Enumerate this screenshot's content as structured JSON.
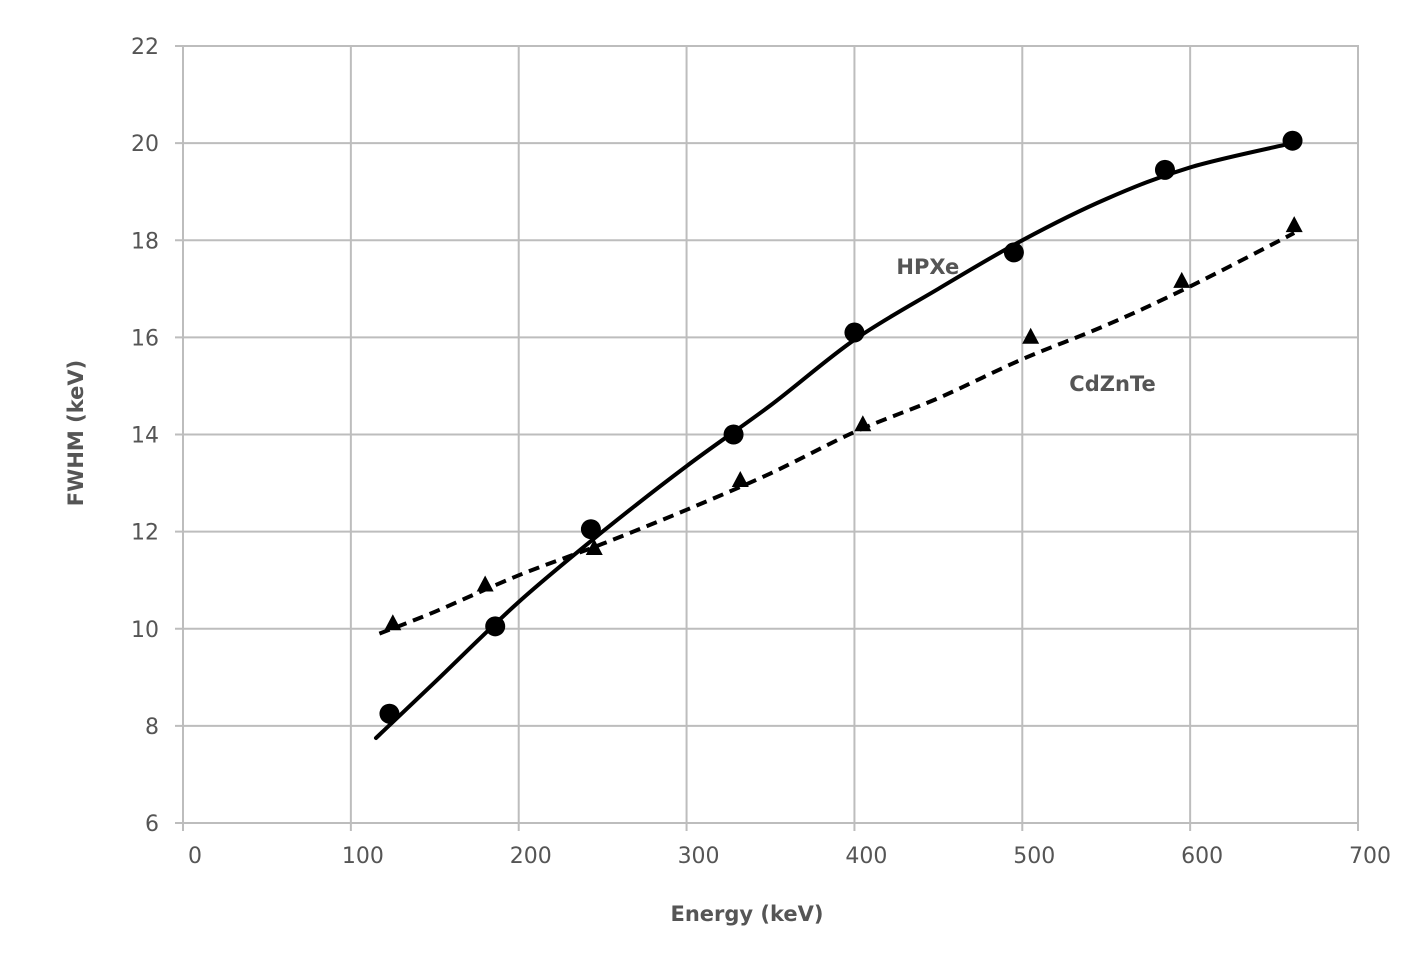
{
  "chart_data": {
    "type": "scatter",
    "xlabel": "Energy (keV)",
    "ylabel": "FWHM (keV)",
    "xlim": [
      0,
      700
    ],
    "ylim": [
      6,
      22
    ],
    "xticks": [
      0,
      100,
      200,
      300,
      400,
      500,
      600,
      700
    ],
    "yticks": [
      6,
      8,
      10,
      12,
      14,
      16,
      18,
      20,
      22
    ],
    "grid": true,
    "legend": "none",
    "series": [
      {
        "name": "HPXe",
        "marker": "circle",
        "line": "solid",
        "color": "#000000",
        "points": [
          [
            123,
            8.25
          ],
          [
            186,
            10.05
          ],
          [
            243,
            12.05
          ],
          [
            328,
            14.0
          ],
          [
            400,
            16.1
          ],
          [
            495,
            17.75
          ],
          [
            585,
            19.45
          ],
          [
            661,
            20.05
          ]
        ],
        "fit": [
          [
            115,
            7.75
          ],
          [
            150,
            8.9
          ],
          [
            200,
            10.55
          ],
          [
            250,
            12.0
          ],
          [
            300,
            13.35
          ],
          [
            350,
            14.6
          ],
          [
            400,
            15.95
          ],
          [
            450,
            17.0
          ],
          [
            500,
            18.0
          ],
          [
            550,
            18.85
          ],
          [
            600,
            19.5
          ],
          [
            661,
            20.0
          ]
        ]
      },
      {
        "name": "CdZnTe",
        "marker": "triangle",
        "line": "dashed",
        "color": "#000000",
        "points": [
          [
            125,
            10.1
          ],
          [
            180,
            10.9
          ],
          [
            245,
            11.65
          ],
          [
            332,
            13.05
          ],
          [
            405,
            14.2
          ],
          [
            505,
            16.0
          ],
          [
            595,
            17.15
          ],
          [
            662,
            18.3
          ]
        ],
        "fit": [
          [
            117,
            9.9
          ],
          [
            150,
            10.35
          ],
          [
            200,
            11.1
          ],
          [
            250,
            11.75
          ],
          [
            300,
            12.45
          ],
          [
            350,
            13.2
          ],
          [
            400,
            14.05
          ],
          [
            450,
            14.75
          ],
          [
            500,
            15.55
          ],
          [
            550,
            16.25
          ],
          [
            600,
            17.05
          ],
          [
            662,
            18.15
          ]
        ]
      }
    ],
    "annotations": [
      {
        "text": "HPXe",
        "x": 425,
        "y": 17.3
      },
      {
        "text": "CdZnTe",
        "x": 528,
        "y": 14.9
      }
    ]
  }
}
